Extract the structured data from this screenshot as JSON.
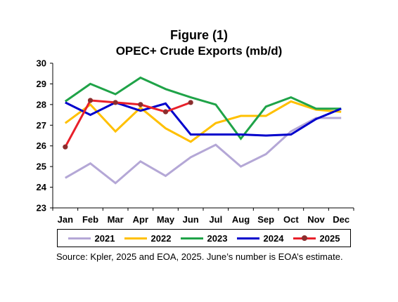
{
  "chart_data": {
    "type": "line",
    "title": "Figure (1)",
    "subtitle": "OPEC+ Crude Exports (mb/d)",
    "xlabel": "",
    "ylabel": "",
    "categories": [
      "Jan",
      "Feb",
      "Mar",
      "Apr",
      "May",
      "Jun",
      "Jul",
      "Aug",
      "Sep",
      "Oct",
      "Nov",
      "Dec"
    ],
    "ylim": [
      23,
      30
    ],
    "yticks": [
      "23",
      "24",
      "25",
      "26",
      "27",
      "28",
      "29",
      "30"
    ],
    "grid": false,
    "legend_position": "bottom",
    "series": [
      {
        "name": "2021",
        "color": "#b4a7d6",
        "markers": false,
        "values": [
          24.45,
          25.15,
          24.2,
          25.25,
          24.55,
          25.45,
          26.05,
          25.0,
          25.6,
          26.7,
          27.35,
          27.35
        ]
      },
      {
        "name": "2022",
        "color": "#ffc000",
        "markers": false,
        "values": [
          27.1,
          28.0,
          26.7,
          27.85,
          26.85,
          26.2,
          27.1,
          27.45,
          27.45,
          28.15,
          27.75,
          27.65
        ]
      },
      {
        "name": "2023",
        "color": "#1fa348",
        "markers": false,
        "values": [
          28.15,
          29.0,
          28.5,
          29.3,
          28.75,
          28.35,
          28.0,
          26.35,
          27.9,
          28.35,
          27.8,
          27.8
        ]
      },
      {
        "name": "2024",
        "color": "#0000cc",
        "markers": false,
        "values": [
          28.1,
          27.5,
          28.1,
          27.7,
          28.05,
          26.55,
          26.55,
          26.55,
          26.5,
          26.55,
          27.3,
          27.8
        ]
      },
      {
        "name": "2025",
        "color": "#e8202a",
        "markers": true,
        "marker_color": "#8b2e2e",
        "values": [
          25.95,
          28.2,
          28.1,
          28.0,
          27.65,
          28.1,
          null,
          null,
          null,
          null,
          null,
          null
        ]
      }
    ]
  },
  "source_note": "Source: Kpler, 2025 and EOA, 2025.  June’s number is EOA’s estimate."
}
